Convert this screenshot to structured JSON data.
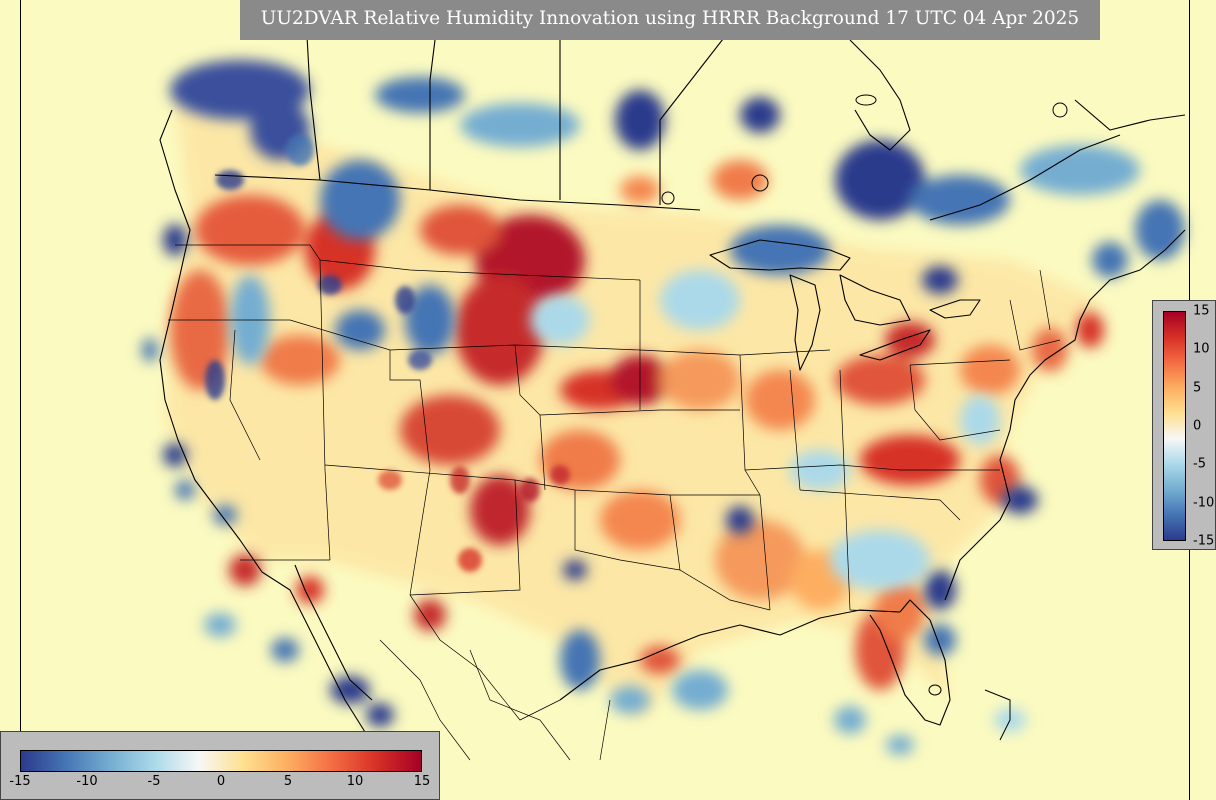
{
  "title": "UU2DVAR Relative Humidity Innovation using HRRR Background 17 UTC 04 Apr 2025",
  "colorbar": {
    "min": -15,
    "max": 15,
    "vertical_ticks": [
      "15",
      "10",
      "5",
      "0",
      "-5",
      "-10",
      "-15"
    ],
    "horizontal_ticks": [
      "-15",
      "-10",
      "-5",
      "0",
      "5",
      "10",
      "15"
    ],
    "colors": [
      "#2b3a8c",
      "#4575b4",
      "#74add1",
      "#abd9e9",
      "#f7f7f7",
      "#fee090",
      "#fdae61",
      "#f46d43",
      "#d73027",
      "#a50026"
    ]
  }
}
